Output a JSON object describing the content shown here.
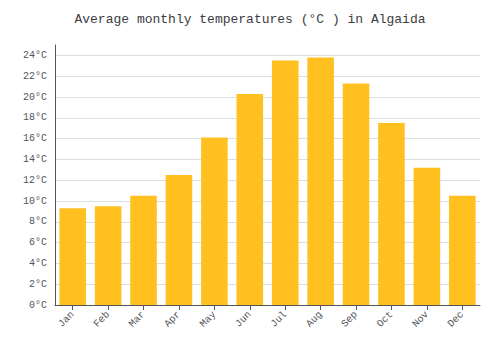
{
  "chart_data": {
    "type": "bar",
    "title": "Average monthly temperatures (°C ) in Algaida",
    "categories": [
      "Jan",
      "Feb",
      "Mar",
      "Apr",
      "May",
      "Jun",
      "Jul",
      "Aug",
      "Sep",
      "Oct",
      "Nov",
      "Dec"
    ],
    "values": [
      9.3,
      9.5,
      10.5,
      12.5,
      16.1,
      20.3,
      23.5,
      23.8,
      21.3,
      17.5,
      13.2,
      10.5
    ],
    "color": "#FFC020",
    "ylim": [
      0,
      25
    ],
    "yticks": [
      {
        "value": 0,
        "label": "0°C"
      },
      {
        "value": 2,
        "label": "2°C"
      },
      {
        "value": 4,
        "label": "4°C"
      },
      {
        "value": 6,
        "label": "6°C"
      },
      {
        "value": 8,
        "label": "8°C"
      },
      {
        "value": 10,
        "label": "10°C"
      },
      {
        "value": 12,
        "label": "12°C"
      },
      {
        "value": 14,
        "label": "14°C"
      },
      {
        "value": 16,
        "label": "16°C"
      },
      {
        "value": 18,
        "label": "18°C"
      },
      {
        "value": 20,
        "label": "20°C"
      },
      {
        "value": 22,
        "label": "22°C"
      },
      {
        "value": 24,
        "label": "24°C"
      }
    ],
    "grid": true
  }
}
